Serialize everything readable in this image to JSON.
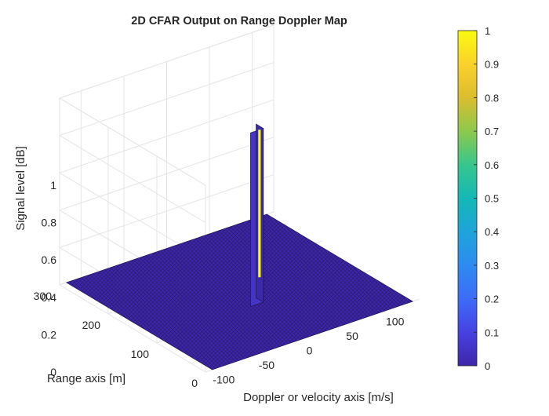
{
  "chart_data": {
    "type": "surface",
    "title": "2D CFAR Output on Range Doppler Map",
    "xlabel": "Doppler or velocity axis [m/s]",
    "ylabel": "Range axis [m]",
    "zlabel": "Signal level [dB]",
    "xlim": [
      -125,
      125
    ],
    "ylim": [
      0,
      300
    ],
    "zlim": [
      0,
      1
    ],
    "xticks": [
      "-100",
      "-50",
      "0",
      "50",
      "100"
    ],
    "yticks": [
      "0",
      "100",
      "200",
      "300"
    ],
    "zticks": [
      "0",
      "0.2",
      "0.4",
      "0.6",
      "0.8",
      "1"
    ],
    "grid": true,
    "colormap": "parula",
    "colorbar": {
      "position": "right",
      "range": [
        0,
        1
      ],
      "ticks": [
        "0",
        "0.1",
        "0.2",
        "0.3",
        "0.4",
        "0.5",
        "0.6",
        "0.7",
        "0.8",
        "0.9",
        "1"
      ]
    },
    "floor_value": 0,
    "detections": [
      {
        "x_range": [
          -10,
          5
        ],
        "y_range": [
          110,
          125
        ],
        "value": 1
      }
    ],
    "colors": {
      "low": "#3e26a8",
      "high": "#f9fb0e",
      "grid": "#e5e5e5",
      "axis": "#262626"
    }
  }
}
